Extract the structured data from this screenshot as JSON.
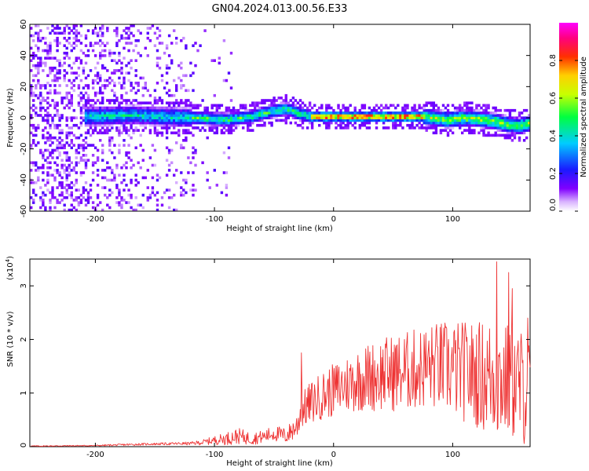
{
  "title": "GN04.2024.013.00.56.E33",
  "chart_data": [
    {
      "type": "heatmap",
      "name": "spectrogram",
      "xlabel": "Height of straight line (km)",
      "ylabel": "Frequency (Hz)",
      "xlim": [
        -255,
        165
      ],
      "ylim": [
        -60,
        60
      ],
      "xticks": [
        -200,
        -100,
        0,
        100
      ],
      "yticks": [
        -60,
        -40,
        -20,
        0,
        20,
        40,
        60
      ],
      "xtick_labels": [
        "-200",
        "-100",
        "0",
        "100"
      ],
      "ytick_labels": [
        "-60",
        "-40",
        "-20",
        "0",
        "20",
        "40",
        "60"
      ],
      "colorbar": {
        "label": "Normalized spectral amplitude",
        "range": [
          0,
          1
        ],
        "ticks": [
          0.0,
          0.2,
          0.4,
          0.6,
          0.8
        ],
        "tick_labels": [
          "0.0",
          "0.2",
          "0.4",
          "0.6",
          "0.8"
        ],
        "colors": [
          "#ffffff",
          "#8000ff",
          "#0000ff",
          "#00ffff",
          "#00ff00",
          "#ffff00",
          "#ff0000",
          "#ff00ff"
        ]
      },
      "ridge": {
        "description": "frequency centre of the signal band vs height",
        "x": [
          -210,
          -170,
          -140,
          -110,
          -90,
          -70,
          -55,
          -40,
          -30,
          -20,
          -10,
          0,
          20,
          40,
          60,
          75,
          85,
          95,
          105,
          115,
          125,
          135,
          145,
          155,
          165
        ],
        "y": [
          0,
          1,
          0,
          -1,
          -2,
          0,
          3,
          5,
          2,
          0,
          0,
          0,
          0,
          0,
          0,
          0,
          -1,
          -2,
          -1,
          -1,
          -2,
          -3,
          -5,
          -6,
          -4
        ]
      }
    },
    {
      "type": "line",
      "name": "snr",
      "xlabel": "Height of straight line (km)",
      "ylabel": "SNR (10 * v/v)",
      "scale_label": "(x10",
      "scale_exponent": "4",
      "xlim": [
        -255,
        165
      ],
      "ylim": [
        0,
        3.5
      ],
      "xticks": [
        -200,
        -100,
        0,
        100
      ],
      "yticks": [
        0,
        1,
        2,
        3
      ],
      "xtick_labels": [
        "-200",
        "-100",
        "0",
        "100"
      ],
      "ytick_labels": [
        "0",
        "1",
        "2",
        "3"
      ],
      "color": "#ee3333",
      "envelope": {
        "x": [
          -255,
          -200,
          -170,
          -150,
          -120,
          -110,
          -100,
          -90,
          -80,
          -70,
          -60,
          -50,
          -40,
          -30,
          -27,
          -25,
          -20,
          -10,
          0,
          10,
          20,
          40,
          60,
          80,
          90,
          100,
          110,
          120,
          130,
          137,
          140,
          150,
          160,
          165
        ],
        "mean": [
          0.01,
          0.02,
          0.04,
          0.05,
          0.06,
          0.08,
          0.12,
          0.15,
          0.2,
          0.15,
          0.18,
          0.25,
          0.2,
          0.4,
          0.8,
          0.7,
          0.8,
          0.95,
          1.05,
          1.15,
          1.25,
          1.35,
          1.4,
          1.5,
          1.5,
          1.45,
          1.4,
          1.35,
          1.3,
          1.3,
          1.25,
          1.2,
          1.1,
          1.0
        ],
        "spread": [
          0.01,
          0.01,
          0.02,
          0.02,
          0.03,
          0.05,
          0.08,
          0.12,
          0.15,
          0.12,
          0.12,
          0.15,
          0.15,
          0.25,
          0.45,
          0.35,
          0.4,
          0.45,
          0.5,
          0.55,
          0.6,
          0.7,
          0.75,
          0.8,
          0.85,
          0.9,
          0.95,
          1.0,
          1.1,
          1.2,
          1.1,
          1.1,
          1.1,
          1.0
        ]
      },
      "peak": {
        "x": 137,
        "y": 3.45
      },
      "notable_points": [
        {
          "x": -27,
          "y": 1.75
        },
        {
          "x": 147,
          "y": 3.25
        },
        {
          "x": 150,
          "y": 2.95
        },
        {
          "x": 163,
          "y": 2.4
        }
      ]
    }
  ]
}
